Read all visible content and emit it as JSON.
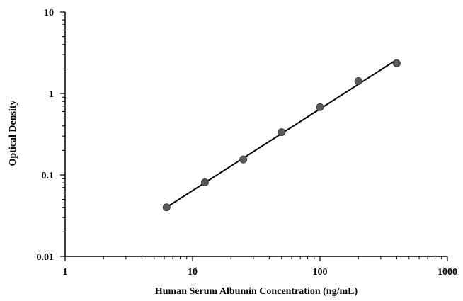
{
  "chart_data": {
    "type": "scatter",
    "title": "",
    "xlabel": "Human Serum Albumin Concentration (ng/mL)",
    "ylabel": "Optical Density",
    "x_scale": "log",
    "y_scale": "log",
    "xlim": [
      1,
      1000
    ],
    "ylim": [
      0.01,
      10
    ],
    "x_ticks": [
      1,
      10,
      100,
      1000
    ],
    "x_tick_labels": [
      "1",
      "10",
      "100",
      "1000"
    ],
    "y_ticks": [
      0.01,
      0.1,
      1,
      10
    ],
    "y_tick_labels": [
      "0.01",
      "0.1",
      "1",
      "10"
    ],
    "grid": false,
    "legend": false,
    "series": [
      {
        "x": [
          6.25,
          12.5,
          25,
          50,
          100,
          200,
          400
        ],
        "y": [
          0.04,
          0.081,
          0.155,
          0.335,
          0.68,
          1.42,
          2.35
        ],
        "marker_color": "#5a5a5a",
        "fit_line": {
          "type": "power",
          "x_range": [
            6.25,
            400
          ],
          "y_range": [
            0.04,
            2.6
          ],
          "color": "#000000"
        }
      }
    ]
  }
}
